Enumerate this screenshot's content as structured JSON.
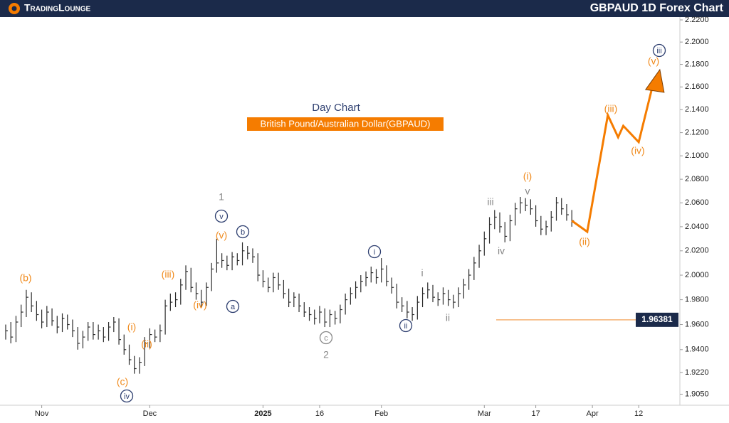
{
  "header": {
    "brand": "TradingLounge",
    "title": "GBPAUD 1D Forex Chart"
  },
  "chart_data": {
    "type": "ohlc",
    "title": "Day Chart",
    "subtitle": "British Pound/Australian Dollar(GBPAUD)",
    "log_scale": true,
    "color": "#2b2b2b",
    "x": [
      "2024-10-23",
      "2024-10-24",
      "2024-10-25",
      "2024-10-28",
      "2024-10-29",
      "2024-10-30",
      "2024-10-31",
      "2024-11-01",
      "2024-11-04",
      "2024-11-05",
      "2024-11-06",
      "2024-11-07",
      "2024-11-08",
      "2024-11-11",
      "2024-11-12",
      "2024-11-13",
      "2024-11-14",
      "2024-11-15",
      "2024-11-18",
      "2024-11-19",
      "2024-11-20",
      "2024-11-21",
      "2024-11-22",
      "2024-11-25",
      "2024-11-26",
      "2024-11-27",
      "2024-11-28",
      "2024-11-29",
      "2024-12-02",
      "2024-12-03",
      "2024-12-04",
      "2024-12-05",
      "2024-12-06",
      "2024-12-09",
      "2024-12-10",
      "2024-12-11",
      "2024-12-12",
      "2024-12-13",
      "2024-12-16",
      "2024-12-17",
      "2024-12-18",
      "2024-12-19",
      "2024-12-20",
      "2024-12-23",
      "2024-12-24",
      "2024-12-25",
      "2024-12-26",
      "2024-12-27",
      "2024-12-30",
      "2024-12-31",
      "2025-01-01",
      "2025-01-02",
      "2025-01-03",
      "2025-01-06",
      "2025-01-07",
      "2025-01-08",
      "2025-01-09",
      "2025-01-10",
      "2025-01-13",
      "2025-01-14",
      "2025-01-15",
      "2025-01-16",
      "2025-01-17",
      "2025-01-20",
      "2025-01-21",
      "2025-01-22",
      "2025-01-23",
      "2025-01-24",
      "2025-01-27",
      "2025-01-28",
      "2025-01-29",
      "2025-01-30",
      "2025-01-31",
      "2025-02-03",
      "2025-02-04",
      "2025-02-05",
      "2025-02-06",
      "2025-02-07",
      "2025-02-10",
      "2025-02-11",
      "2025-02-12",
      "2025-02-13",
      "2025-02-14",
      "2025-02-17",
      "2025-02-18",
      "2025-02-19",
      "2025-02-20",
      "2025-02-21",
      "2025-02-24",
      "2025-02-25",
      "2025-02-26",
      "2025-02-27",
      "2025-02-28",
      "2025-03-03",
      "2025-03-04",
      "2025-03-05",
      "2025-03-06",
      "2025-03-07",
      "2025-03-10",
      "2025-03-11",
      "2025-03-12",
      "2025-03-13",
      "2025-03-14",
      "2025-03-17",
      "2025-03-18",
      "2025-03-19",
      "2025-03-20",
      "2025-03-21",
      "2025-03-24",
      "2025-03-25",
      "2025-03-26"
    ],
    "high": [
      1.96,
      1.962,
      1.967,
      1.976,
      1.988,
      1.986,
      1.979,
      1.972,
      1.975,
      1.973,
      1.967,
      1.969,
      1.968,
      1.964,
      1.958,
      1.955,
      1.962,
      1.962,
      1.96,
      1.958,
      1.962,
      1.966,
      1.965,
      1.952,
      1.944,
      1.935,
      1.934,
      1.95,
      1.957,
      1.956,
      1.96,
      1.98,
      1.985,
      1.986,
      1.997,
      2.008,
      2.006,
      1.994,
      1.988,
      1.994,
      2.01,
      2.03,
      2.018,
      2.016,
      2.019,
      2.018,
      2.027,
      2.024,
      2.022,
      2.018,
      2.004,
      1.998,
      2.002,
      2.002,
      1.996,
      1.989,
      1.986,
      1.985,
      1.978,
      1.974,
      1.972,
      1.975,
      1.973,
      1.972,
      1.971,
      1.976,
      1.985,
      1.99,
      1.995,
      2.0,
      2.003,
      2.007,
      2.005,
      2.014,
      2.008,
      1.998,
      1.993,
      1.982,
      1.979,
      1.974,
      1.983,
      1.99,
      1.994,
      1.992,
      1.986,
      1.99,
      1.988,
      1.984,
      1.99,
      1.997,
      2.005,
      2.015,
      2.025,
      2.036,
      2.048,
      2.054,
      2.052,
      2.044,
      2.05,
      2.06,
      2.065,
      2.064,
      2.063,
      2.058,
      2.049,
      2.045,
      2.053,
      2.065,
      2.064,
      2.059,
      2.054
    ],
    "low": [
      1.948,
      1.945,
      1.946,
      1.958,
      1.966,
      1.97,
      1.963,
      1.957,
      1.958,
      1.959,
      1.953,
      1.954,
      1.956,
      1.95,
      1.94,
      1.941,
      1.947,
      1.948,
      1.948,
      1.946,
      1.947,
      1.954,
      1.944,
      1.936,
      1.928,
      1.921,
      1.921,
      1.927,
      1.941,
      1.946,
      1.946,
      1.952,
      1.971,
      1.974,
      1.976,
      1.988,
      1.986,
      1.98,
      1.974,
      1.975,
      1.987,
      2.002,
      2.006,
      2.004,
      2.004,
      2.008,
      2.008,
      2.013,
      2.01,
      1.995,
      1.99,
      1.986,
      1.986,
      1.988,
      1.981,
      1.974,
      1.974,
      1.97,
      1.966,
      1.963,
      1.96,
      1.961,
      1.958,
      1.958,
      1.96,
      1.961,
      1.968,
      1.976,
      1.981,
      1.986,
      1.991,
      1.994,
      1.993,
      1.994,
      1.991,
      1.985,
      1.973,
      1.97,
      1.965,
      1.963,
      1.964,
      1.974,
      1.981,
      1.978,
      1.975,
      1.976,
      1.975,
      1.973,
      1.974,
      1.981,
      1.988,
      1.996,
      2.006,
      2.016,
      2.026,
      2.038,
      2.035,
      2.027,
      2.028,
      2.041,
      2.051,
      2.053,
      2.05,
      2.04,
      2.033,
      2.033,
      2.036,
      2.045,
      2.05,
      2.045,
      2.04
    ],
    "close": [
      1.955,
      1.95,
      1.962,
      1.97,
      1.982,
      1.975,
      1.968,
      1.962,
      1.97,
      1.963,
      1.958,
      1.965,
      1.96,
      1.955,
      1.945,
      1.95,
      1.958,
      1.952,
      1.955,
      1.95,
      1.958,
      1.962,
      1.948,
      1.94,
      1.932,
      1.925,
      1.93,
      1.945,
      1.952,
      1.95,
      1.955,
      1.975,
      1.978,
      1.98,
      1.992,
      2.003,
      1.99,
      1.985,
      1.978,
      1.99,
      2.005,
      2.01,
      2.012,
      2.008,
      2.015,
      2.012,
      2.02,
      2.018,
      2.015,
      2.0,
      1.995,
      1.99,
      1.998,
      1.992,
      1.985,
      1.978,
      1.982,
      1.975,
      1.97,
      1.968,
      1.965,
      1.97,
      1.962,
      1.968,
      1.965,
      1.972,
      1.98,
      1.985,
      1.99,
      1.995,
      1.998,
      2.002,
      1.998,
      2.005,
      1.995,
      1.99,
      1.978,
      1.975,
      1.97,
      1.968,
      1.978,
      1.985,
      1.988,
      1.982,
      1.98,
      1.985,
      1.98,
      1.978,
      1.985,
      1.992,
      2.0,
      2.01,
      2.02,
      2.03,
      2.042,
      2.048,
      2.04,
      2.032,
      2.045,
      2.055,
      2.06,
      2.058,
      2.055,
      2.045,
      2.038,
      2.04,
      2.048,
      2.06,
      2.055,
      2.05,
      2.045
    ],
    "forecast": {
      "color": "#f57c00",
      "x": [
        "2025-03-26",
        "2025-03-31",
        "2025-04-04",
        "2025-04-08",
        "2025-04-09",
        "2025-04-14",
        "2025-04-17"
      ],
      "values": [
        2.045,
        2.0358,
        2.1352,
        2.116,
        2.1259,
        2.1118,
        2.1665
      ]
    },
    "level": {
      "value": 1.96381,
      "label": "1.96381",
      "color": "#f5b070"
    },
    "wave_labels": [
      "(b)",
      "(c)",
      "iv",
      "(i)",
      "(ii)",
      "(iii)",
      "(iv)",
      "(v)",
      "v",
      "1",
      "a",
      "b",
      "c",
      "2",
      "i",
      "ii",
      "i",
      "ii",
      "iii",
      "iv",
      "v",
      "(i)",
      "(ii)",
      "(iii)",
      "(iv)",
      "(v)",
      "iii"
    ],
    "xlim": [
      "2024-10-23",
      "2025-04-24"
    ],
    "xticks": [
      {
        "value": "2024-11-01",
        "label": "Nov"
      },
      {
        "value": "2024-12-02",
        "label": "Dec"
      },
      {
        "value": "2025-01-01",
        "label": "2025"
      },
      {
        "value": "2025-01-16",
        "label": "16"
      },
      {
        "value": "2025-02-03",
        "label": "Feb"
      },
      {
        "value": "2025-03-03",
        "label": "Mar"
      },
      {
        "value": "2025-03-17",
        "label": "17"
      },
      {
        "value": "2025-04-01",
        "label": "Apr"
      },
      {
        "value": "2025-04-12",
        "label": "12"
      }
    ],
    "ylim": [
      1.8964,
      2.2226
    ],
    "yticks": [
      {
        "value": 2.22,
        "label": "2.2200"
      },
      {
        "value": 2.2,
        "label": "2.2000"
      },
      {
        "value": 2.18,
        "label": "2.1800"
      },
      {
        "value": 2.16,
        "label": "2.1600"
      },
      {
        "value": 2.14,
        "label": "2.1400"
      },
      {
        "value": 2.12,
        "label": "2.1200"
      },
      {
        "value": 2.1,
        "label": "2.1000"
      },
      {
        "value": 2.08,
        "label": "2.0800"
      },
      {
        "value": 2.06,
        "label": "2.0600"
      },
      {
        "value": 2.04,
        "label": "2.0400"
      },
      {
        "value": 2.02,
        "label": "2.0200"
      },
      {
        "value": 2.0,
        "label": "2.0000"
      },
      {
        "value": 1.98,
        "label": "1.9800"
      },
      {
        "value": 1.96,
        "label": "1.9600"
      },
      {
        "value": 1.94,
        "label": "1.9400"
      },
      {
        "value": 1.922,
        "label": "1.9220"
      },
      {
        "value": 1.905,
        "label": "1.9050"
      }
    ]
  }
}
